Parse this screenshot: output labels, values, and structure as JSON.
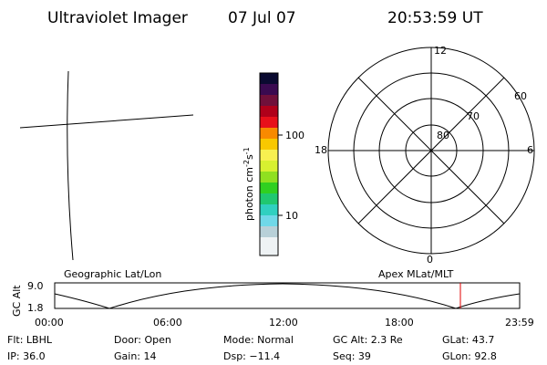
{
  "header": {
    "title": "Ultraviolet Imager",
    "date": "07 Jul 07",
    "time": "20:53:59 UT"
  },
  "colorbar": {
    "label": {
      "unit": "photon cm",
      "exp1": "-2",
      "s": "s",
      "exp2": "-1"
    },
    "ticks": [
      "100",
      "10"
    ]
  },
  "polar": {
    "mlt_labels": {
      "top": "12",
      "left": "18",
      "right": "6",
      "bottom": "0"
    },
    "lat_labels": [
      "60",
      "70",
      "80"
    ]
  },
  "timeline": {
    "left_label": "Geographic Lat/Lon",
    "right_label": "Apex MLat/MLT",
    "axis_label": "GC Alt",
    "yticks": [
      "9.0",
      "1.8"
    ],
    "xticks": [
      "00:00",
      "06:00",
      "12:00",
      "18:00",
      "23:59"
    ]
  },
  "status": {
    "rows": [
      [
        "Flt: LBHL",
        "Door: Open",
        "Mode: Normal",
        "GC Alt: 2.3 Re",
        "GLat: 43.7"
      ],
      [
        "IP: 36.0",
        "Gain: 14",
        "Dsp: −11.4",
        "Seq: 39",
        "GLon: 92.8"
      ]
    ]
  }
}
